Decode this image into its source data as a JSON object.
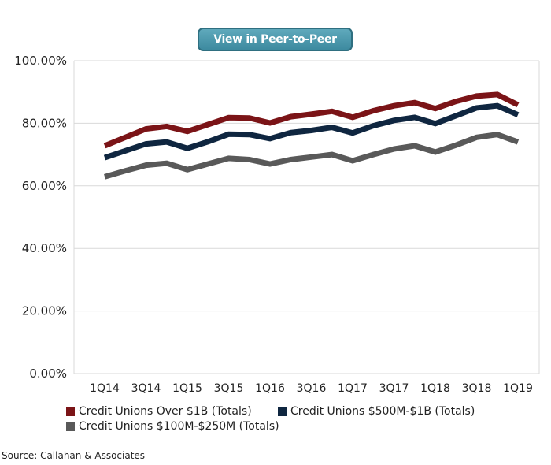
{
  "header": {
    "button_label": "View in Peer-to-Peer"
  },
  "source": "Source: Callahan & Associates",
  "chart_data": {
    "type": "line",
    "x": [
      "1Q14",
      "2Q14",
      "3Q14",
      "4Q14",
      "1Q15",
      "2Q15",
      "3Q15",
      "4Q15",
      "1Q16",
      "2Q16",
      "3Q16",
      "4Q16",
      "1Q17",
      "2Q17",
      "3Q17",
      "4Q17",
      "1Q18",
      "2Q18",
      "3Q18",
      "4Q18",
      "1Q19"
    ],
    "x_tick_labels": [
      "1Q14",
      "3Q14",
      "1Q15",
      "3Q15",
      "1Q16",
      "3Q16",
      "1Q17",
      "3Q17",
      "1Q18",
      "3Q18",
      "1Q19"
    ],
    "y_tick_labels": [
      "100.00%",
      "80.00%",
      "60.00%",
      "40.00%",
      "20.00%",
      "0.00%"
    ],
    "ylim": [
      0,
      100
    ],
    "grid": "horizontal",
    "legend_position": "bottom",
    "series": [
      {
        "name": "Credit Unions Over $1B (Totals)",
        "color": "#7b1417",
        "values": [
          72.8,
          75.5,
          78.2,
          79.0,
          77.4,
          79.6,
          81.8,
          81.7,
          80.1,
          82.1,
          82.9,
          83.8,
          81.9,
          84.0,
          85.6,
          86.6,
          84.7,
          87.0,
          88.7,
          89.2,
          85.9
        ]
      },
      {
        "name": "Credit Unions $500M-$1B (Totals)",
        "color": "#0f2640",
        "values": [
          69.0,
          71.2,
          73.4,
          74.0,
          72.0,
          74.1,
          76.5,
          76.4,
          75.1,
          77.0,
          77.7,
          78.7,
          76.9,
          79.2,
          80.9,
          81.9,
          79.9,
          82.4,
          84.9,
          85.6,
          82.7
        ]
      },
      {
        "name": "Credit Unions $100M-$250M (Totals)",
        "color": "#595959",
        "values": [
          62.9,
          64.8,
          66.6,
          67.2,
          65.2,
          67.0,
          68.8,
          68.4,
          67.0,
          68.4,
          69.2,
          70.0,
          68.0,
          70.0,
          71.8,
          72.8,
          70.8,
          73.0,
          75.5,
          76.4,
          74.0
        ]
      }
    ]
  }
}
